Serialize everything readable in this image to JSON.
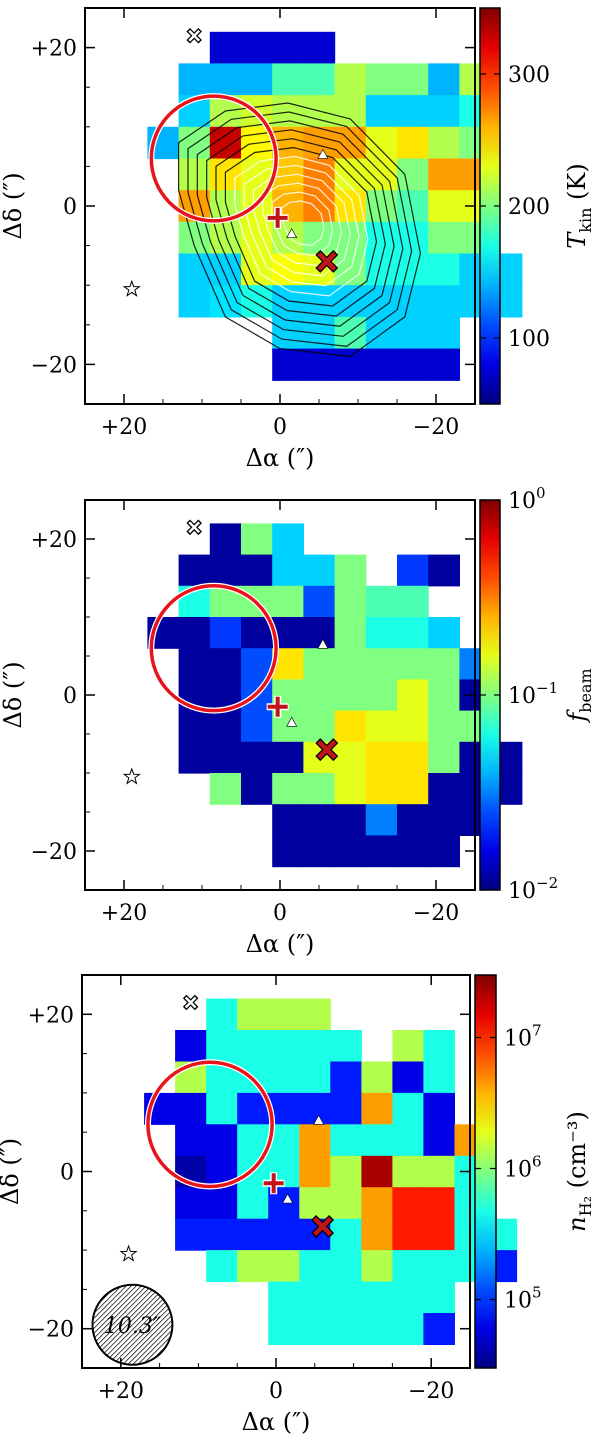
{
  "chart_data": [
    {
      "type": "heatmap",
      "xlabel": "Δα (″)",
      "ylabel": "Δδ (″)",
      "xlim": [
        25,
        -25
      ],
      "ylim": [
        -25,
        25
      ],
      "x_ticks": [
        {
          "v": 20,
          "label": "+20"
        },
        {
          "v": 0,
          "label": "0"
        },
        {
          "v": -20,
          "label": "−20"
        }
      ],
      "y_ticks": [
        {
          "v": 20,
          "label": "+20"
        },
        {
          "v": 0,
          "label": "0"
        },
        {
          "v": -20,
          "label": "−20"
        }
      ],
      "colorbar": {
        "label": "T",
        "label_sub": "kin",
        "label_unit": " (K)",
        "scale": "linear",
        "range": [
          50,
          350
        ],
        "ticks": [
          {
            "v": 100,
            "label": "100"
          },
          {
            "v": 200,
            "label": "200"
          },
          {
            "v": 300,
            "label": "300"
          }
        ]
      },
      "grid": {
        "x0": 17,
        "y_top": 22,
        "cell": 4,
        "colormap": "jet",
        "rows": [
          [
            null,
            null,
            0.08,
            0.08,
            0.08,
            0.08,
            null,
            null,
            null,
            null,
            null,
            null,
            null
          ],
          [
            null,
            0.3,
            0.3,
            0.3,
            0.45,
            0.45,
            0.55,
            0.5,
            0.5,
            0.3,
            0.55,
            null,
            null
          ],
          [
            null,
            0.33,
            0.55,
            0.58,
            0.55,
            0.55,
            0.55,
            0.33,
            0.33,
            0.33,
            0.4,
            null,
            null
          ],
          [
            0.3,
            0.5,
            0.93,
            0.63,
            0.7,
            0.72,
            0.72,
            0.6,
            0.65,
            0.55,
            0.5,
            null,
            null
          ],
          [
            null,
            0.55,
            0.65,
            0.6,
            0.68,
            0.75,
            0.6,
            0.6,
            0.5,
            0.72,
            0.72,
            null,
            null
          ],
          [
            null,
            0.72,
            0.55,
            0.6,
            0.7,
            0.75,
            0.65,
            0.5,
            0.45,
            0.6,
            0.6,
            null,
            null
          ],
          [
            null,
            0.5,
            0.55,
            0.6,
            0.55,
            0.5,
            0.5,
            0.4,
            0.4,
            0.5,
            0.5,
            null,
            null
          ],
          [
            null,
            0.33,
            0.33,
            0.6,
            0.62,
            0.6,
            0.5,
            0.4,
            0.4,
            0.4,
            0.33,
            0.33,
            null
          ],
          [
            null,
            0.33,
            0.35,
            0.4,
            0.33,
            0.33,
            0.33,
            0.33,
            0.33,
            0.33,
            0.33,
            0.33,
            null
          ],
          [
            null,
            null,
            null,
            null,
            0.33,
            0.33,
            0.45,
            0.33,
            0.33,
            0.33,
            null,
            null,
            null
          ],
          [
            null,
            null,
            null,
            null,
            0.08,
            0.08,
            0.08,
            0.08,
            0.08,
            0.08,
            null,
            null,
            null
          ]
        ]
      },
      "contours": true,
      "beam_label": null
    },
    {
      "type": "heatmap",
      "xlabel": "Δα (″)",
      "ylabel": "Δδ (″)",
      "xlim": [
        25,
        -25
      ],
      "ylim": [
        -25,
        25
      ],
      "x_ticks": [
        {
          "v": 20,
          "label": "+20"
        },
        {
          "v": 0,
          "label": "0"
        },
        {
          "v": -20,
          "label": "−20"
        }
      ],
      "y_ticks": [
        {
          "v": 20,
          "label": "+20"
        },
        {
          "v": 0,
          "label": "0"
        },
        {
          "v": -20,
          "label": "−20"
        }
      ],
      "colorbar": {
        "label": "f",
        "label_sub": "beam",
        "label_unit": "",
        "scale": "log",
        "range": [
          0.01,
          1
        ],
        "ticks": [
          {
            "v": 0.01,
            "base": "10",
            "exp": "−2"
          },
          {
            "v": 0.1,
            "base": "10",
            "exp": "−1"
          },
          {
            "v": 1,
            "base": "10",
            "exp": "0"
          }
        ]
      },
      "grid": {
        "x0": 17,
        "y_top": 22,
        "cell": 4,
        "colormap": "jet",
        "rows": [
          [
            null,
            null,
            0.03,
            0.5,
            0.33,
            null,
            null,
            null,
            null,
            null,
            null,
            null,
            null
          ],
          [
            null,
            0.03,
            0.03,
            0.03,
            0.33,
            0.33,
            0.5,
            null,
            0.18,
            0.03,
            null,
            null,
            null
          ],
          [
            null,
            0.4,
            0.5,
            0.5,
            0.5,
            0.2,
            0.5,
            0.45,
            0.45,
            null,
            null,
            null,
            null
          ],
          [
            0.03,
            0.03,
            0.18,
            0.03,
            0.03,
            0.03,
            0.5,
            0.4,
            0.4,
            0.33,
            null,
            null,
            null
          ],
          [
            null,
            0.03,
            0.03,
            0.2,
            0.65,
            0.5,
            0.5,
            0.5,
            0.5,
            0.5,
            0.25,
            null,
            null
          ],
          [
            null,
            0.03,
            0.03,
            0.2,
            0.5,
            0.5,
            0.5,
            0.5,
            0.6,
            0.5,
            0.03,
            null,
            null
          ],
          [
            null,
            0.03,
            0.03,
            0.2,
            0.5,
            0.5,
            0.65,
            0.6,
            0.6,
            0.5,
            0.5,
            null,
            null
          ],
          [
            null,
            0.03,
            0.03,
            0.03,
            0.03,
            0.6,
            0.6,
            0.65,
            0.65,
            0.5,
            0.03,
            0.03,
            null
          ],
          [
            null,
            null,
            0.5,
            0.03,
            0.5,
            0.5,
            0.6,
            0.65,
            0.65,
            0.03,
            0.03,
            0.03,
            null
          ],
          [
            null,
            null,
            null,
            null,
            0.03,
            0.03,
            0.03,
            0.25,
            0.03,
            0.03,
            0.03,
            null,
            null
          ],
          [
            null,
            null,
            null,
            null,
            0.03,
            0.03,
            0.03,
            0.03,
            0.03,
            0.03,
            null,
            null,
            null
          ]
        ]
      },
      "contours": false,
      "beam_label": null
    },
    {
      "type": "heatmap",
      "xlabel": "Δα (″)",
      "ylabel": "Δδ (″)",
      "xlim": [
        25,
        -25
      ],
      "ylim": [
        -25,
        25
      ],
      "x_ticks": [
        {
          "v": 20,
          "label": "+20"
        },
        {
          "v": 0,
          "label": "0"
        },
        {
          "v": -20,
          "label": "−20"
        }
      ],
      "y_ticks": [
        {
          "v": 20,
          "label": "+20"
        },
        {
          "v": 0,
          "label": "0"
        },
        {
          "v": -20,
          "label": "−20"
        }
      ],
      "colorbar": {
        "label": "n",
        "label_sub": "H₂",
        "label_unit": " (cm⁻³)",
        "scale": "log",
        "range": [
          30000,
          30000000
        ],
        "ticks": [
          {
            "v": 100000,
            "base": "10",
            "exp": "5"
          },
          {
            "v": 1000000,
            "base": "10",
            "exp": "6"
          },
          {
            "v": 10000000,
            "base": "10",
            "exp": "7"
          }
        ]
      },
      "grid": {
        "x0": 17,
        "y_top": 22,
        "cell": 4,
        "colormap": "jet",
        "rows": [
          [
            null,
            null,
            0.4,
            0.55,
            0.55,
            0.55,
            null,
            null,
            null,
            null,
            null,
            null,
            null
          ],
          [
            null,
            0.1,
            0.4,
            0.4,
            0.4,
            0.4,
            0.4,
            null,
            0.55,
            0.4,
            null,
            null,
            null
          ],
          [
            null,
            0.55,
            0.4,
            0.4,
            0.4,
            0.4,
            0.15,
            0.55,
            0.1,
            0.4,
            null,
            null,
            null
          ],
          [
            0.1,
            0.1,
            0.4,
            0.15,
            0.15,
            0.15,
            0.15,
            0.72,
            0.4,
            0.1,
            null,
            null,
            null
          ],
          [
            null,
            0.1,
            0.1,
            0.4,
            0.4,
            0.72,
            0.4,
            0.4,
            0.4,
            0.1,
            0.72,
            null,
            null
          ],
          [
            null,
            0.04,
            0.1,
            0.4,
            0.4,
            0.72,
            0.55,
            0.96,
            0.55,
            0.55,
            0.4,
            null,
            null
          ],
          [
            null,
            0.1,
            0.1,
            0.4,
            0.15,
            0.55,
            0.55,
            0.72,
            0.85,
            0.85,
            0.4,
            null,
            null
          ],
          [
            null,
            0.15,
            0.15,
            0.15,
            0.15,
            0.15,
            0.4,
            0.72,
            0.85,
            0.85,
            0.4,
            0.4,
            null
          ],
          [
            null,
            null,
            0.4,
            0.55,
            0.55,
            0.4,
            0.4,
            0.55,
            0.4,
            0.4,
            0.4,
            0.15,
            null
          ],
          [
            null,
            null,
            null,
            null,
            0.4,
            0.4,
            0.4,
            0.4,
            0.4,
            0.4,
            null,
            null,
            null
          ],
          [
            null,
            null,
            null,
            null,
            0.4,
            0.4,
            0.4,
            0.4,
            0.4,
            0.15,
            null,
            null,
            null
          ]
        ]
      },
      "contours": false,
      "beam_label": "10.3″"
    }
  ],
  "markers": {
    "circle": {
      "ra": 8.5,
      "dec": 6,
      "r": 8
    },
    "plus": {
      "ra": 0.3,
      "dec": -1.5
    },
    "x_red": {
      "ra": -6,
      "dec": -7
    },
    "x_white": {
      "ra": 11,
      "dec": 21.5
    },
    "star": {
      "ra": 19,
      "dec": -10.5
    },
    "triangles": [
      {
        "ra": -5.5,
        "dec": 6.5
      },
      {
        "ra": -1.5,
        "dec": -3.5
      }
    ],
    "beam": {
      "ra": 18.5,
      "dec": -19.5,
      "r": 5.15
    }
  }
}
